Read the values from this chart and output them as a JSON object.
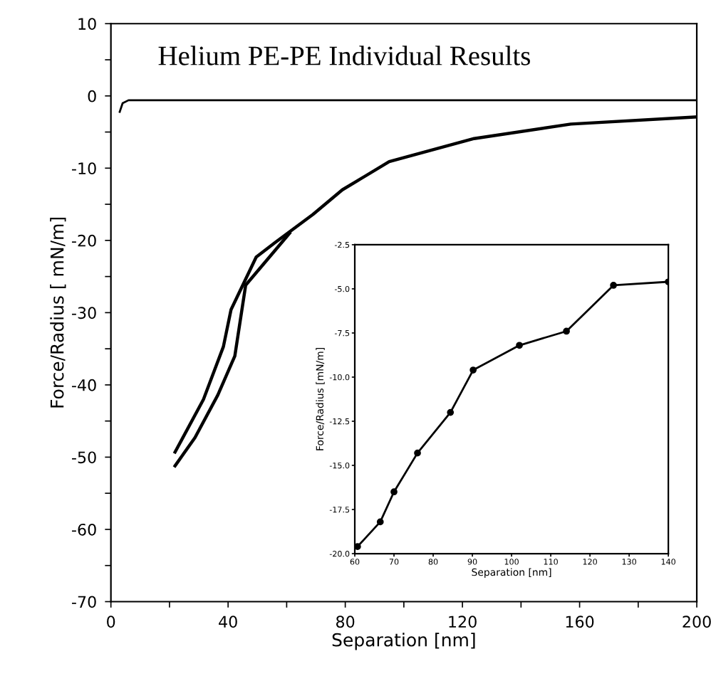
{
  "chart_data": [
    {
      "type": "line",
      "title": "Helium PE-PE Individual Results",
      "xlabel": "Separation [nm]",
      "ylabel": "Force/Radius [ mN/m]",
      "xlim": [
        0,
        200
      ],
      "ylim": [
        -70,
        10
      ],
      "xticks": [
        0,
        {
          "value": 20,
          "label": null
        },
        40,
        {
          "value": 60,
          "label": null
        },
        80,
        {
          "value": 100,
          "label": null
        },
        120,
        {
          "value": 140,
          "label": null
        },
        160,
        {
          "value": 180,
          "label": null
        },
        200
      ],
      "yticks": [
        -70,
        {
          "value": -65,
          "label": null
        },
        -60,
        {
          "value": -55,
          "label": null
        },
        -50,
        {
          "value": -45,
          "label": null
        },
        -40,
        {
          "value": -35,
          "label": null
        },
        -30,
        {
          "value": -25,
          "label": null
        },
        -20,
        {
          "value": -15,
          "label": null
        },
        -10,
        {
          "value": -5,
          "label": null
        },
        0,
        {
          "value": 5,
          "label": null
        },
        10
      ],
      "grid": false,
      "legend": false,
      "series": [
        {
          "color": "#000000",
          "x": [
            3,
            4,
            6,
            200
          ],
          "values": [
            -2.2,
            -1.0,
            -0.6,
            -0.6
          ]
        },
        {
          "color": "#000000",
          "x": [
            21.9,
            31.6,
            38.4,
            41,
            49.6,
            56,
            69,
            79,
            95,
            124,
            157,
            200
          ],
          "values": [
            -49.3,
            -42,
            -34.7,
            -29.6,
            -22.3,
            -20.3,
            -16.4,
            -13,
            -9.1,
            -5.9,
            -3.9,
            -2.9
          ]
        },
        {
          "color": "#000000",
          "x": [
            21.9,
            28.7,
            36.5,
            42.3,
            46,
            61
          ],
          "values": [
            -51.2,
            -47.3,
            -41.4,
            -36,
            -26.2,
            -19
          ]
        }
      ]
    },
    {
      "type": "line",
      "xlabel": "Separation [nm]",
      "ylabel": "Force/Radius [mN/m]",
      "xlim": [
        60,
        140
      ],
      "ylim": [
        -20,
        -2.5
      ],
      "xticks": [
        60,
        70,
        80,
        90,
        100,
        110,
        120,
        130,
        140
      ],
      "yticks": [
        {
          "value": -20,
          "label": "-20.0"
        },
        -17.5,
        {
          "value": -15,
          "label": "-15.0"
        },
        -12.5,
        {
          "value": -10,
          "label": "-10.0"
        },
        -7.5,
        {
          "value": -5,
          "label": "-5.0"
        },
        -2.5
      ],
      "grid": false,
      "legend": false,
      "marker": "circle",
      "series": [
        {
          "color": "#000000",
          "x": [
            60.7,
            66.5,
            70,
            76,
            84.4,
            90.2,
            102,
            114,
            126,
            140
          ],
          "values": [
            -19.6,
            -18.2,
            -16.5,
            -14.3,
            -12.0,
            -9.6,
            -8.2,
            -7.4,
            -4.8,
            -4.6
          ]
        }
      ]
    }
  ]
}
